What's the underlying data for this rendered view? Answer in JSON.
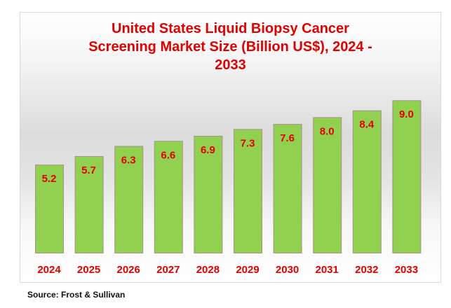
{
  "chart_data": {
    "type": "bar",
    "title": "United States Liquid Biopsy  Cancer Screening Market Size (Billion US$), 2024 - 2033",
    "title_lines": [
      "United States Liquid Biopsy  Cancer",
      "Screening Market Size (Billion US$), 2024 -",
      "2033"
    ],
    "categories": [
      "2024",
      "2025",
      "2026",
      "2027",
      "2028",
      "2029",
      "2030",
      "2031",
      "2032",
      "2033"
    ],
    "values": [
      5.2,
      5.7,
      6.3,
      6.6,
      6.9,
      7.3,
      7.6,
      8.0,
      8.4,
      9.0
    ],
    "value_labels": [
      "5.2",
      "5.7",
      "6.3",
      "6.6",
      "6.9",
      "7.3",
      "7.6",
      "8.0",
      "8.4",
      "9.0"
    ],
    "xlabel": "",
    "ylabel": "",
    "ylim": [
      0,
      10
    ],
    "grid": false,
    "legend": "none",
    "colors": {
      "bar": "#92d050",
      "bar_border": "#a89090",
      "text": "#e00000"
    }
  },
  "source": "Source: Frost & Sullivan"
}
